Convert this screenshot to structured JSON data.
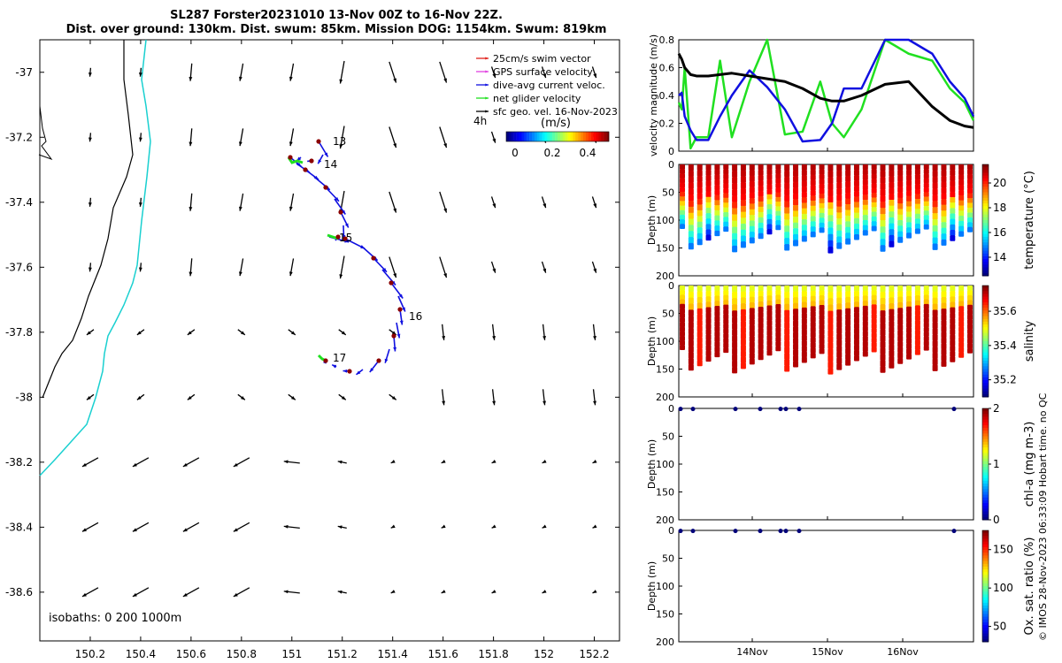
{
  "title_line1": "SL287 Forster20231010 13-Nov 00Z to 16-Nov 22Z.",
  "title_line2": "Dist. over ground: 130km. Dist. swum: 85km. Mission DOG: 1154km. Swum: 819km",
  "credit": "© IMOS 28-Nov-2023 06:33:09 Hobart time. no QC",
  "colors": {
    "coast_black": "#000000",
    "isobath_200": "#1ad0d0",
    "swim_vector": "#e0201a",
    "gps_velocity": "#e040e0",
    "dive_avg": "#1010e0",
    "net_velocity": "#20e020",
    "sfc_geo": "#000000"
  },
  "map": {
    "xlim": [
      150.0,
      152.3
    ],
    "ylim": [
      -38.75,
      -36.9
    ],
    "xticks": [
      "150.2",
      "150.4",
      "150.6",
      "150.8",
      "151",
      "151.2",
      "151.4",
      "151.6",
      "151.8",
      "152",
      "152.2"
    ],
    "yticks": [
      "-37",
      "-37.2",
      "-37.4",
      "-37.6",
      "-37.8",
      "-38",
      "-38.2",
      "-38.4",
      "-38.6"
    ],
    "legend": [
      {
        "label": "25cm/s swim vector",
        "color": "#e0201a"
      },
      {
        "label": "GPS surface velocity",
        "color": "#e040e0"
      },
      {
        "label": "dive-avg current veloc.",
        "color": "#1010e0"
      },
      {
        "label": "net glider velocity",
        "color": "#20e020"
      },
      {
        "label": "sfc geo. vel. 16-Nov-2023",
        "color": "#000000"
      }
    ],
    "legend_note": "4h",
    "colorbar_label": "(m/s)",
    "colorbar_ticks": [
      "0",
      "0.2",
      "0.4"
    ],
    "day_labels": [
      "13",
      "14",
      "15",
      "16",
      "17"
    ],
    "isobaths_label": "isobaths: 0   200   1000m"
  },
  "timeseries": {
    "ylabel": "velocity magnitude (m/s)",
    "yticks": [
      "0",
      "0.2",
      "0.4",
      "0.6",
      "0.8"
    ],
    "ylim": [
      0,
      0.8
    ],
    "x": [
      0,
      0.01,
      0.02,
      0.04,
      0.06,
      0.1,
      0.14,
      0.18,
      0.24,
      0.3,
      0.36,
      0.42,
      0.48,
      0.52,
      0.56,
      0.62,
      0.7,
      0.78,
      0.86,
      0.92,
      0.97,
      1.0
    ],
    "series": [
      {
        "name": "black",
        "values": [
          0.7,
          0.66,
          0.6,
          0.55,
          0.54,
          0.54,
          0.55,
          0.56,
          0.54,
          0.52,
          0.5,
          0.45,
          0.38,
          0.36,
          0.36,
          0.4,
          0.48,
          0.5,
          0.32,
          0.22,
          0.18,
          0.17
        ]
      },
      {
        "name": "blue",
        "values": [
          0.4,
          0.42,
          0.25,
          0.15,
          0.08,
          0.08,
          0.25,
          0.4,
          0.58,
          0.46,
          0.3,
          0.07,
          0.08,
          0.2,
          0.45,
          0.45,
          0.8,
          0.8,
          0.7,
          0.5,
          0.38,
          0.25
        ]
      },
      {
        "name": "green",
        "values": [
          0.35,
          0.3,
          0.6,
          0.02,
          0.1,
          0.1,
          0.65,
          0.1,
          0.5,
          0.8,
          0.12,
          0.14,
          0.5,
          0.2,
          0.1,
          0.3,
          0.8,
          0.7,
          0.65,
          0.45,
          0.35,
          0.22
        ]
      }
    ]
  },
  "depth_panels": [
    {
      "id": "temperature",
      "ylabel": "Depth (m)",
      "cblabel": "temperature (°C)",
      "cbticks": [
        "14",
        "16",
        "18",
        "20"
      ],
      "cblim": [
        12.5,
        21.5
      ],
      "depth_ticks": [
        "0",
        "50",
        "100",
        "150",
        "200"
      ]
    },
    {
      "id": "salinity",
      "ylabel": "Depth (m)",
      "cblabel": "salinity",
      "cbticks": [
        "35.2",
        "35.4",
        "35.6"
      ],
      "cblim": [
        35.1,
        35.75
      ],
      "depth_ticks": [
        "0",
        "50",
        "100",
        "150",
        "200"
      ]
    },
    {
      "id": "chla",
      "ylabel": "Depth (m)",
      "cblabel": "chl-a (mg m-3)",
      "cbticks": [
        "0",
        "1",
        "2"
      ],
      "cblim": [
        0,
        2
      ],
      "depth_ticks": [
        "0",
        "50",
        "100",
        "150",
        "200"
      ]
    },
    {
      "id": "oxsat",
      "ylabel": "Depth (m)",
      "cblabel": "Ox. sat. ratio (%)",
      "cbticks": [
        "50",
        "100",
        "150"
      ],
      "cblim": [
        30,
        175
      ],
      "depth_ticks": [
        "0",
        "50",
        "100",
        "150",
        "200"
      ]
    }
  ],
  "time_axis": {
    "labels": [
      "14Nov",
      "15Nov",
      "16Nov"
    ]
  }
}
